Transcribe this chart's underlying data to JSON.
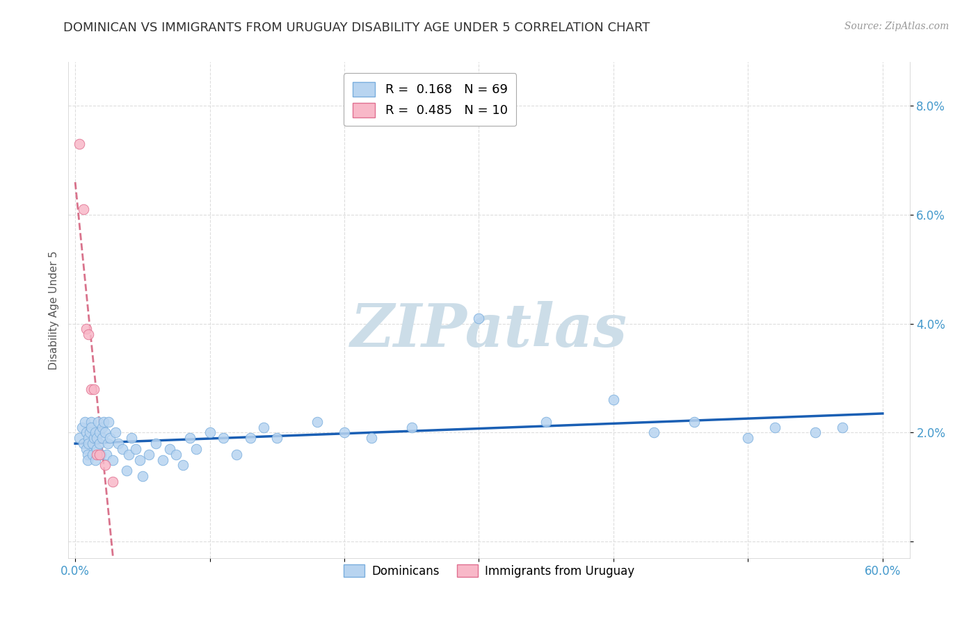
{
  "title": "DOMINICAN VS IMMIGRANTS FROM URUGUAY DISABILITY AGE UNDER 5 CORRELATION CHART",
  "source": "Source: ZipAtlas.com",
  "ylabel": "Disability Age Under 5",
  "xlabel": "",
  "xlim": [
    -0.005,
    0.62
  ],
  "ylim": [
    -0.003,
    0.088
  ],
  "xticks": [
    0.0,
    0.1,
    0.2,
    0.3,
    0.4,
    0.5,
    0.6
  ],
  "xticklabels": [
    "0.0%",
    "",
    "",
    "",
    "",
    "",
    "60.0%"
  ],
  "yticks": [
    0.0,
    0.02,
    0.04,
    0.06,
    0.08
  ],
  "yticklabels": [
    "",
    "2.0%",
    "4.0%",
    "6.0%",
    "8.0%"
  ],
  "dominicans": {
    "color": "#b8d4f0",
    "edge_color": "#7aaedd",
    "trend_color": "#1a5fb4",
    "trend_style": "solid",
    "R": 0.168,
    "N": 69,
    "x": [
      0.003,
      0.005,
      0.006,
      0.007,
      0.008,
      0.008,
      0.009,
      0.009,
      0.01,
      0.01,
      0.011,
      0.012,
      0.012,
      0.013,
      0.013,
      0.014,
      0.015,
      0.015,
      0.016,
      0.016,
      0.017,
      0.018,
      0.018,
      0.019,
      0.02,
      0.02,
      0.021,
      0.022,
      0.023,
      0.024,
      0.025,
      0.026,
      0.028,
      0.03,
      0.032,
      0.035,
      0.038,
      0.04,
      0.042,
      0.045,
      0.048,
      0.05,
      0.055,
      0.06,
      0.065,
      0.07,
      0.075,
      0.08,
      0.085,
      0.09,
      0.1,
      0.11,
      0.12,
      0.13,
      0.14,
      0.15,
      0.18,
      0.2,
      0.22,
      0.25,
      0.3,
      0.35,
      0.4,
      0.43,
      0.46,
      0.5,
      0.52,
      0.55,
      0.57
    ],
    "y": [
      0.019,
      0.021,
      0.018,
      0.022,
      0.02,
      0.017,
      0.016,
      0.015,
      0.019,
      0.018,
      0.02,
      0.022,
      0.021,
      0.016,
      0.018,
      0.019,
      0.02,
      0.015,
      0.017,
      0.019,
      0.022,
      0.018,
      0.02,
      0.016,
      0.019,
      0.021,
      0.022,
      0.02,
      0.016,
      0.018,
      0.022,
      0.019,
      0.015,
      0.02,
      0.018,
      0.017,
      0.013,
      0.016,
      0.019,
      0.017,
      0.015,
      0.012,
      0.016,
      0.018,
      0.015,
      0.017,
      0.016,
      0.014,
      0.019,
      0.017,
      0.02,
      0.019,
      0.016,
      0.019,
      0.021,
      0.019,
      0.022,
      0.02,
      0.019,
      0.021,
      0.041,
      0.022,
      0.026,
      0.02,
      0.022,
      0.019,
      0.021,
      0.02,
      0.021
    ]
  },
  "uruguay": {
    "color": "#f8b8c8",
    "edge_color": "#e07090",
    "trend_color": "#d05070",
    "trend_style": "dashed",
    "R": 0.485,
    "N": 10,
    "x": [
      0.003,
      0.006,
      0.008,
      0.01,
      0.012,
      0.014,
      0.016,
      0.018,
      0.022,
      0.028
    ],
    "y": [
      0.073,
      0.061,
      0.039,
      0.038,
      0.028,
      0.028,
      0.016,
      0.016,
      0.014,
      0.011
    ]
  },
  "background_color": "#ffffff",
  "grid_color": "#dddddd",
  "title_color": "#333333",
  "title_fontsize": 13,
  "axis_label_fontsize": 11,
  "tick_fontsize": 12,
  "tick_color": "#4499cc",
  "watermark_text": "ZIPatlas",
  "watermark_color": "#ccdde8",
  "source_color": "#999999",
  "dom_legend_label": "R =  0.168   N = 69",
  "uru_legend_label": "R =  0.485   N = 10",
  "dom_bottom_label": "Dominicans",
  "uru_bottom_label": "Immigrants from Uruguay"
}
